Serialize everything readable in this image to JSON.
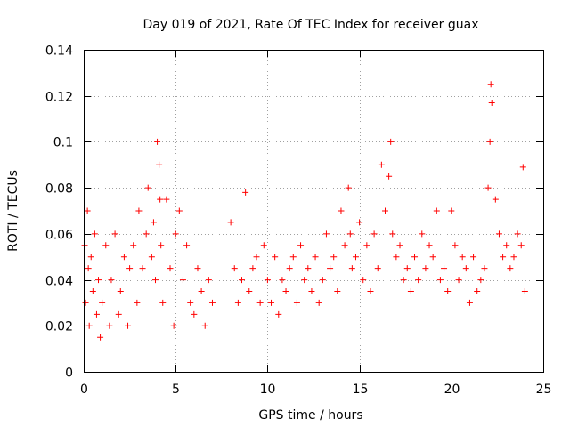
{
  "chart_data": {
    "type": "scatter",
    "title": "Day 019 of 2021, Rate Of TEC Index for receiver guax",
    "xlabel": "GPS time / hours",
    "ylabel": "ROTI / TECUs",
    "xlim": [
      0,
      25
    ],
    "ylim": [
      0,
      0.14
    ],
    "xticks": [
      "0",
      "5",
      "10",
      "15",
      "20",
      "25"
    ],
    "yticks": [
      "0",
      "0.02",
      "0.04",
      "0.06",
      "0.08",
      "0.1",
      "0.12",
      "0.14"
    ],
    "xtick_values": [
      0,
      5,
      10,
      15,
      20,
      25
    ],
    "ytick_values": [
      0,
      0.02,
      0.04,
      0.06,
      0.08,
      0.1,
      0.12,
      0.14
    ],
    "grid": true,
    "marker": "+",
    "color": "#ff0000",
    "series": [
      {
        "x": [
          0.05,
          0.1,
          0.2,
          0.25,
          0.3,
          0.4,
          0.5,
          0.6,
          0.7,
          0.8,
          0.9,
          1.0,
          1.2,
          1.4,
          1.5,
          1.7,
          1.9,
          2.0,
          2.2,
          2.4,
          2.5,
          2.7,
          2.9,
          3.0,
          3.2,
          3.4,
          3.5,
          3.7,
          3.8,
          3.9,
          4.0,
          4.1,
          4.15,
          4.2,
          4.3,
          4.5,
          4.7,
          4.9,
          5.0,
          5.2,
          5.4,
          5.6,
          5.8,
          6.0,
          6.2,
          6.4,
          6.6,
          6.8,
          7.0,
          8.0,
          8.2,
          8.4,
          8.6,
          8.8,
          9.0,
          9.2,
          9.4,
          9.6,
          9.8,
          10.0,
          10.2,
          10.4,
          10.6,
          10.8,
          11.0,
          11.2,
          11.4,
          11.6,
          11.8,
          12.0,
          12.2,
          12.4,
          12.6,
          12.8,
          13.0,
          13.2,
          13.4,
          13.6,
          13.8,
          14.0,
          14.2,
          14.4,
          14.5,
          14.6,
          14.8,
          15.0,
          15.2,
          15.4,
          15.6,
          15.8,
          16.0,
          16.2,
          16.4,
          16.6,
          16.7,
          16.8,
          17.0,
          17.2,
          17.4,
          17.6,
          17.8,
          18.0,
          18.2,
          18.4,
          18.6,
          18.8,
          19.0,
          19.2,
          19.4,
          19.6,
          19.8,
          20.0,
          20.2,
          20.4,
          20.6,
          20.8,
          21.0,
          21.2,
          21.4,
          21.6,
          21.8,
          22.0,
          22.1,
          22.15,
          22.2,
          22.4,
          22.6,
          22.8,
          23.0,
          23.2,
          23.4,
          23.6,
          23.8,
          23.9,
          24.0
        ],
        "y": [
          0.055,
          0.03,
          0.07,
          0.045,
          0.02,
          0.05,
          0.035,
          0.06,
          0.025,
          0.04,
          0.015,
          0.03,
          0.055,
          0.02,
          0.04,
          0.06,
          0.025,
          0.035,
          0.05,
          0.02,
          0.045,
          0.055,
          0.03,
          0.07,
          0.045,
          0.06,
          0.08,
          0.05,
          0.065,
          0.04,
          0.1,
          0.09,
          0.075,
          0.055,
          0.03,
          0.075,
          0.045,
          0.02,
          0.06,
          0.07,
          0.04,
          0.055,
          0.03,
          0.025,
          0.045,
          0.035,
          0.02,
          0.04,
          0.03,
          0.065,
          0.045,
          0.03,
          0.04,
          0.078,
          0.035,
          0.045,
          0.05,
          0.03,
          0.055,
          0.04,
          0.03,
          0.05,
          0.025,
          0.04,
          0.035,
          0.045,
          0.05,
          0.03,
          0.055,
          0.04,
          0.045,
          0.035,
          0.05,
          0.03,
          0.04,
          0.06,
          0.045,
          0.05,
          0.035,
          0.07,
          0.055,
          0.08,
          0.06,
          0.045,
          0.05,
          0.065,
          0.04,
          0.055,
          0.035,
          0.06,
          0.045,
          0.09,
          0.07,
          0.085,
          0.1,
          0.06,
          0.05,
          0.055,
          0.04,
          0.045,
          0.035,
          0.05,
          0.04,
          0.06,
          0.045,
          0.055,
          0.05,
          0.07,
          0.04,
          0.045,
          0.035,
          0.07,
          0.055,
          0.04,
          0.05,
          0.045,
          0.03,
          0.05,
          0.035,
          0.04,
          0.045,
          0.08,
          0.1,
          0.125,
          0.117,
          0.075,
          0.06,
          0.05,
          0.055,
          0.045,
          0.05,
          0.06,
          0.055,
          0.089,
          0.035
        ]
      }
    ]
  }
}
